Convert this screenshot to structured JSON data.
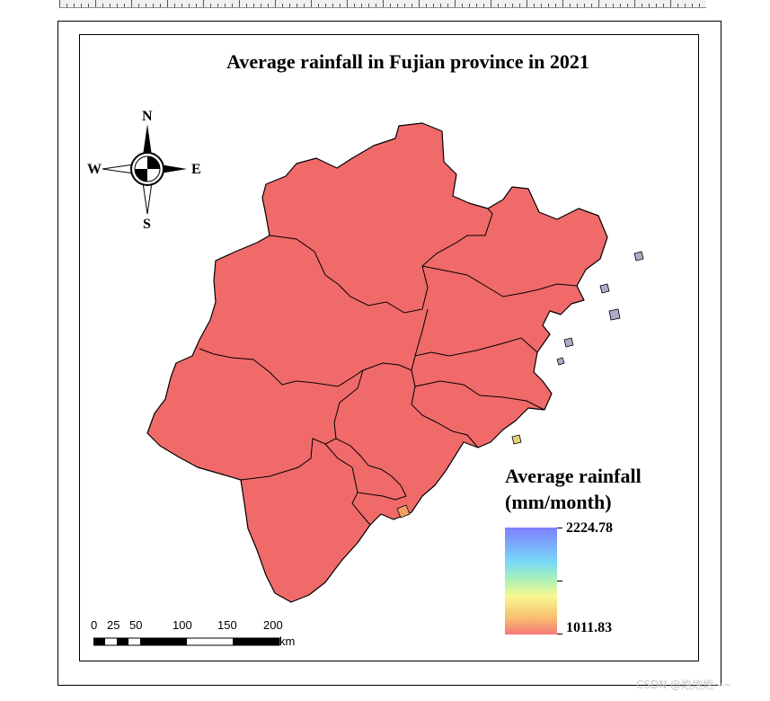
{
  "map": {
    "title": "Average rainfall in Fujian province in 2021",
    "compass": {
      "north": "N",
      "south": "S",
      "east": "E",
      "west": "W"
    },
    "legend": {
      "title_line1": "Average rainfall",
      "title_line2": "(mm/month)",
      "max_value": "2224.78",
      "min_value": "1011.83",
      "ramp_colors": [
        "#8080ff",
        "#78d8f8",
        "#a8f0b8",
        "#f8f890",
        "#f8c070",
        "#f87878"
      ]
    },
    "scale_bar": {
      "ticks": [
        "0",
        "25",
        "50",
        "100",
        "150",
        "200"
      ],
      "unit": "km"
    },
    "border_color": "#000000"
  },
  "watermark": "CSDN @炮炮炮~~"
}
